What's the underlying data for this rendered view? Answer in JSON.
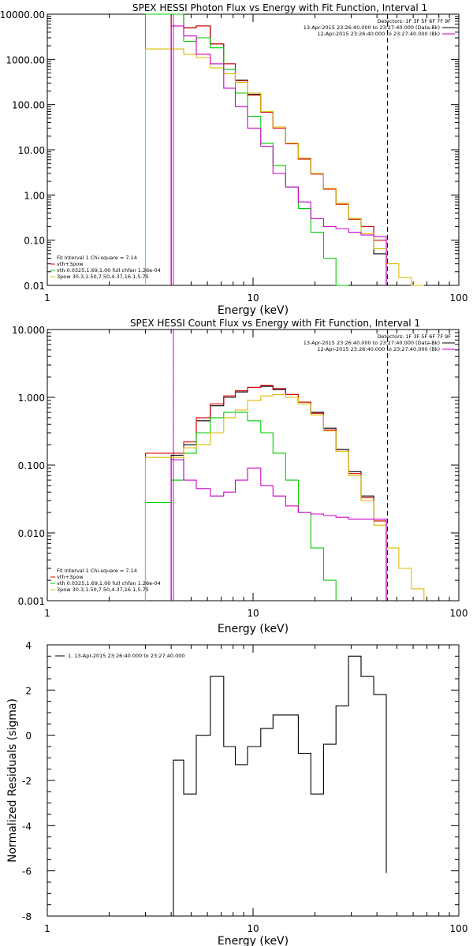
{
  "chart_data": [
    {
      "type": "line",
      "title": "SPEX HESSI Photon Flux vs Energy with Fit Function, Interval 1",
      "xlabel": "Energy (keV)",
      "ylabel": "",
      "xscale": "log",
      "yscale": "log",
      "xlim": [
        1,
        100
      ],
      "ylim": [
        0.01,
        10000
      ],
      "xticks": [
        "1",
        "10",
        "100"
      ],
      "yticks": [
        "10000.00",
        "1000.00",
        "100.00",
        "10.00",
        "1.00",
        "0.10",
        "0.01"
      ],
      "legend_topright": [
        "Detectors: 1F 3F 5F 6F 7F 9F",
        "13-Apr-2015 23:26:40.000 to 23:27:40.000 (Data-Bk)",
        "12-Apr-2015 23:26:40.000 to 23:27:40.000 (Bk)"
      ],
      "legend_bottomleft": [
        "Fit Interval 1   Chi-square = 7.14",
        "vth+3pow",
        "vth 0.0325,1.69,1.00  full chfan 1.26e-04",
        "3pow 30.3,1.50,7.50,4.37,16.1,5.75"
      ],
      "legend_colors": [
        "#000000",
        "#dd0000",
        "#00cc00",
        "#ddbb00"
      ],
      "vlines": [
        {
          "x": 4.1,
          "style": "solid",
          "color": "#cc00cc"
        },
        {
          "x": 45,
          "style": "dashed",
          "color": "#000000"
        }
      ],
      "edges": [
        3,
        4,
        4.6,
        5.3,
        6.2,
        7.2,
        8.2,
        9.4,
        10.9,
        12.5,
        14.4,
        16.6,
        19.1,
        22.0,
        25.3,
        29.1,
        33.5,
        38.6,
        44.4,
        51.1,
        58.8,
        67.7
      ],
      "series": [
        {
          "name": "Data-Bk",
          "color": "#000000",
          "values": [
            null,
            10000,
            5000,
            5500,
            2200,
            800,
            350,
            170,
            70,
            32,
            14,
            6.5,
            3,
            1.4,
            0.65,
            0.3,
            0.2,
            0.05,
            null,
            null,
            null
          ]
        },
        {
          "name": "vth+3pow",
          "color": "#dd0000",
          "values": [
            null,
            10000,
            5000,
            5500,
            2200,
            800,
            340,
            160,
            68,
            30,
            13.5,
            6.2,
            2.9,
            1.35,
            0.62,
            0.29,
            0.2,
            0.1,
            null,
            null,
            null
          ]
        },
        {
          "name": "vth",
          "color": "#00cc00",
          "values": [
            10000,
            10000,
            2500,
            3000,
            1800,
            600,
            180,
            55,
            14,
            4.5,
            1.5,
            0.5,
            0.15,
            0.04,
            0.01,
            null,
            null,
            null,
            null,
            null,
            null
          ]
        },
        {
          "name": "3pow",
          "color": "#ddbb00",
          "values": [
            1700,
            1700,
            1300,
            1100,
            650,
            480,
            310,
            180,
            70,
            32,
            14,
            6.5,
            3,
            1.4,
            0.65,
            0.3,
            0.14,
            0.065,
            0.03,
            0.015,
            0.01
          ]
        },
        {
          "name": "Bk",
          "color": "#cc00cc",
          "values": [
            null,
            5500,
            3300,
            1300,
            800,
            230,
            90,
            30,
            12,
            3,
            1.5,
            0.7,
            0.3,
            0.2,
            0.18,
            0.15,
            0.13,
            0.12,
            null,
            null,
            null
          ]
        }
      ]
    },
    {
      "type": "line",
      "title": "SPEX HESSI Count Flux vs Energy with Fit Function, Interval 1",
      "xlabel": "Energy (keV)",
      "ylabel": "",
      "xscale": "log",
      "yscale": "log",
      "xlim": [
        1,
        100
      ],
      "ylim": [
        0.001,
        10
      ],
      "xticks": [
        "1",
        "10",
        "100"
      ],
      "yticks": [
        "10.000",
        "1.000",
        "0.100",
        "0.010",
        "0.001"
      ],
      "legend_topright": [
        "Detectors: 1F 3F 5F 6F 7F 9F",
        "13-Apr-2015 23:26:40.000 to 23:27:40.000 (Data-Bk)",
        "12-Apr-2015 23:26:40.000 to 23:27:40.000 (Bk)"
      ],
      "legend_bottomleft": [
        "Fit Interval 1   Chi-square = 7.14",
        "vth+3pow",
        "vth 0.0325,1.69,1.00  full chfan 1.26e-04",
        "3pow 30.3,1.50,7.50,4.37,16.1,5.75"
      ],
      "legend_colors": [
        "#000000",
        "#dd0000",
        "#00cc00",
        "#ddbb00"
      ],
      "vlines": [
        {
          "x": 4.1,
          "style": "dotted",
          "color": "#000000"
        },
        {
          "x": 4.1,
          "style": "solid",
          "color": "#cc00cc"
        },
        {
          "x": 45,
          "style": "dashed",
          "color": "#000000"
        }
      ],
      "edges": [
        3,
        4,
        4.6,
        5.3,
        6.2,
        7.2,
        8.2,
        9.4,
        10.9,
        12.5,
        14.4,
        16.6,
        19.1,
        22.0,
        25.3,
        29.1,
        33.5,
        38.6,
        44.4,
        51.1,
        58.8,
        67.7
      ],
      "series": [
        {
          "name": "Data-Bk",
          "color": "#000000",
          "values": [
            null,
            0.14,
            0.2,
            0.45,
            0.75,
            1.0,
            1.2,
            1.4,
            1.45,
            1.3,
            1.1,
            0.85,
            0.6,
            0.35,
            0.17,
            0.08,
            0.035,
            0.015,
            null,
            null,
            null
          ]
        },
        {
          "name": "vth+3pow",
          "color": "#dd0000",
          "values": [
            0.15,
            0.15,
            0.22,
            0.5,
            0.8,
            1.05,
            1.25,
            1.4,
            1.5,
            1.35,
            1.1,
            0.85,
            0.58,
            0.33,
            0.16,
            0.075,
            0.033,
            0.015,
            null,
            null,
            null
          ]
        },
        {
          "name": "vth",
          "color": "#00cc00",
          "values": [
            0.028,
            0.06,
            0.15,
            0.3,
            0.5,
            0.6,
            0.6,
            0.45,
            0.3,
            0.15,
            0.06,
            0.02,
            0.006,
            0.002,
            null,
            null,
            null,
            null,
            null,
            null,
            null
          ]
        },
        {
          "name": "3pow",
          "color": "#ddbb00",
          "values": [
            0.13,
            0.13,
            0.18,
            0.2,
            0.3,
            0.5,
            0.65,
            0.9,
            1.05,
            1.1,
            1.0,
            0.8,
            0.55,
            0.32,
            0.16,
            0.07,
            0.03,
            0.013,
            0.006,
            0.003,
            0.0015
          ]
        },
        {
          "name": "Bk",
          "color": "#cc00cc",
          "values": [
            null,
            0.12,
            0.06,
            0.045,
            0.035,
            0.04,
            0.06,
            0.09,
            0.05,
            0.035,
            0.025,
            0.02,
            0.019,
            0.018,
            0.017,
            0.016,
            0.016,
            0.016,
            null,
            null,
            null
          ]
        }
      ]
    },
    {
      "type": "line",
      "title": "",
      "xlabel": "Energy (keV)",
      "ylabel": "Normalized Residuals (sigma)",
      "xscale": "log",
      "yscale": "linear",
      "xlim": [
        1,
        100
      ],
      "ylim": [
        -8,
        4
      ],
      "xticks": [
        "1",
        "10",
        "100"
      ],
      "yticks": [
        "4",
        "2",
        "0",
        "-2",
        "-4",
        "-6",
        "-8"
      ],
      "legend_topleft": [
        "1. 13-Apr-2015 23:26:40.000 to 23:27:40.000"
      ],
      "edges": [
        4.1,
        4.6,
        5.3,
        6.2,
        7.2,
        8.2,
        9.4,
        10.9,
        12.5,
        14.4,
        16.6,
        19.1,
        22.0,
        25.3,
        29.1,
        33.5,
        38.6,
        44.4
      ],
      "series": [
        {
          "name": "",
          "color": "#000000",
          "values": [
            -1.1,
            -2.6,
            0.0,
            2.6,
            -0.5,
            -1.3,
            -0.5,
            0.3,
            0.9,
            0.9,
            -0.8,
            -2.6,
            -0.4,
            1.3,
            3.5,
            2.6,
            1.8,
            -6.1
          ]
        }
      ]
    }
  ]
}
